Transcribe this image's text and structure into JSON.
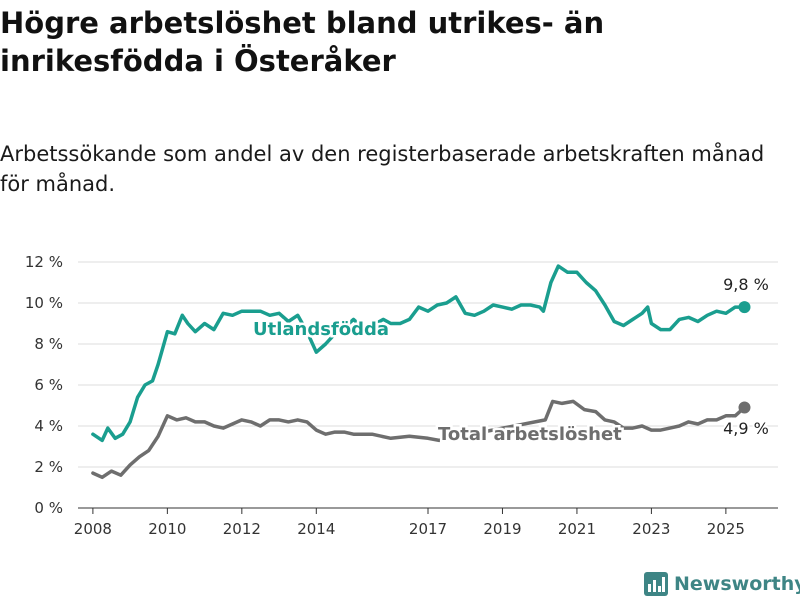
{
  "header": {
    "title": "Högre arbetslöshet bland utrikes- än inrikesfödda i Österåker",
    "subtitle": "Arbetssökande som andel av den registerbaserade arbetskraften månad för månad."
  },
  "branding": {
    "logo_text": "Newsworthy"
  },
  "chart_data": {
    "type": "line",
    "title": "Högre arbetslöshet bland utrikes- än inrikesfödda i Österåker",
    "subtitle": "Arbetssökande som andel av den registerbaserade arbetskraften månad för månad.",
    "xlabel": "",
    "ylabel": "",
    "xlim": [
      2007.6,
      2026.4
    ],
    "ylim": [
      0,
      12
    ],
    "x_ticks": [
      2008,
      2010,
      2012,
      2014,
      2017,
      2019,
      2021,
      2023,
      2025
    ],
    "y_ticks": [
      {
        "value": 0,
        "label": "0 %"
      },
      {
        "value": 2,
        "label": "2 %"
      },
      {
        "value": 4,
        "label": "4 %"
      },
      {
        "value": 6,
        "label": "6 %"
      },
      {
        "value": 8,
        "label": "8 %"
      },
      {
        "value": 10,
        "label": "10 %"
      },
      {
        "value": 12,
        "label": "12 %"
      }
    ],
    "grid": "horizontal",
    "series": [
      {
        "name": "Utlandsfödda",
        "color": "#1a9e8f",
        "end_label": "9,8 %",
        "points": [
          [
            2008.0,
            3.6
          ],
          [
            2008.25,
            3.3
          ],
          [
            2008.4,
            3.9
          ],
          [
            2008.6,
            3.4
          ],
          [
            2008.8,
            3.6
          ],
          [
            2009.0,
            4.2
          ],
          [
            2009.2,
            5.4
          ],
          [
            2009.4,
            6.0
          ],
          [
            2009.6,
            6.2
          ],
          [
            2009.75,
            7.0
          ],
          [
            2010.0,
            8.6
          ],
          [
            2010.2,
            8.5
          ],
          [
            2010.4,
            9.4
          ],
          [
            2010.55,
            9.0
          ],
          [
            2010.75,
            8.6
          ],
          [
            2011.0,
            9.0
          ],
          [
            2011.25,
            8.7
          ],
          [
            2011.5,
            9.5
          ],
          [
            2011.75,
            9.4
          ],
          [
            2012.0,
            9.6
          ],
          [
            2012.5,
            9.6
          ],
          [
            2012.75,
            9.4
          ],
          [
            2013.0,
            9.5
          ],
          [
            2013.25,
            9.1
          ],
          [
            2013.5,
            9.4
          ],
          [
            2013.75,
            8.6
          ],
          [
            2014.0,
            7.6
          ],
          [
            2014.25,
            8.0
          ],
          [
            2014.5,
            8.5
          ],
          [
            2014.75,
            8.8
          ],
          [
            2015.0,
            9.2
          ],
          [
            2015.3,
            8.7
          ],
          [
            2015.6,
            9.0
          ],
          [
            2015.8,
            9.2
          ],
          [
            2016.0,
            9.0
          ],
          [
            2016.25,
            9.0
          ],
          [
            2016.5,
            9.2
          ],
          [
            2016.75,
            9.8
          ],
          [
            2017.0,
            9.6
          ],
          [
            2017.25,
            9.9
          ],
          [
            2017.5,
            10.0
          ],
          [
            2017.75,
            10.3
          ],
          [
            2018.0,
            9.5
          ],
          [
            2018.25,
            9.4
          ],
          [
            2018.5,
            9.6
          ],
          [
            2018.75,
            9.9
          ],
          [
            2019.0,
            9.8
          ],
          [
            2019.25,
            9.7
          ],
          [
            2019.5,
            9.9
          ],
          [
            2019.75,
            9.9
          ],
          [
            2020.0,
            9.8
          ],
          [
            2020.1,
            9.6
          ],
          [
            2020.3,
            11.0
          ],
          [
            2020.5,
            11.8
          ],
          [
            2020.75,
            11.5
          ],
          [
            2021.0,
            11.5
          ],
          [
            2021.25,
            11.0
          ],
          [
            2021.5,
            10.6
          ],
          [
            2021.75,
            9.9
          ],
          [
            2022.0,
            9.1
          ],
          [
            2022.25,
            8.9
          ],
          [
            2022.5,
            9.2
          ],
          [
            2022.75,
            9.5
          ],
          [
            2022.9,
            9.8
          ],
          [
            2023.0,
            9.0
          ],
          [
            2023.25,
            8.7
          ],
          [
            2023.5,
            8.7
          ],
          [
            2023.75,
            9.2
          ],
          [
            2024.0,
            9.3
          ],
          [
            2024.25,
            9.1
          ],
          [
            2024.5,
            9.4
          ],
          [
            2024.75,
            9.6
          ],
          [
            2025.0,
            9.5
          ],
          [
            2025.25,
            9.8
          ],
          [
            2025.5,
            9.8
          ]
        ]
      },
      {
        "name": "Total arbetslöshet",
        "color": "#6e6e6e",
        "end_label": "4,9 %",
        "points": [
          [
            2008.0,
            1.7
          ],
          [
            2008.25,
            1.5
          ],
          [
            2008.5,
            1.8
          ],
          [
            2008.75,
            1.6
          ],
          [
            2009.0,
            2.1
          ],
          [
            2009.25,
            2.5
          ],
          [
            2009.5,
            2.8
          ],
          [
            2009.75,
            3.5
          ],
          [
            2010.0,
            4.5
          ],
          [
            2010.25,
            4.3
          ],
          [
            2010.5,
            4.4
          ],
          [
            2010.75,
            4.2
          ],
          [
            2011.0,
            4.2
          ],
          [
            2011.25,
            4.0
          ],
          [
            2011.5,
            3.9
          ],
          [
            2011.75,
            4.1
          ],
          [
            2012.0,
            4.3
          ],
          [
            2012.25,
            4.2
          ],
          [
            2012.5,
            4.0
          ],
          [
            2012.75,
            4.3
          ],
          [
            2013.0,
            4.3
          ],
          [
            2013.25,
            4.2
          ],
          [
            2013.5,
            4.3
          ],
          [
            2013.75,
            4.2
          ],
          [
            2014.0,
            3.8
          ],
          [
            2014.25,
            3.6
          ],
          [
            2014.5,
            3.7
          ],
          [
            2014.75,
            3.7
          ],
          [
            2015.0,
            3.6
          ],
          [
            2015.5,
            3.6
          ],
          [
            2016.0,
            3.4
          ],
          [
            2016.5,
            3.5
          ],
          [
            2017.0,
            3.4
          ],
          [
            2017.3,
            3.3
          ],
          [
            2020.15,
            4.3
          ],
          [
            2020.35,
            5.2
          ],
          [
            2020.6,
            5.1
          ],
          [
            2020.9,
            5.2
          ],
          [
            2021.2,
            4.8
          ],
          [
            2021.5,
            4.7
          ],
          [
            2021.75,
            4.3
          ],
          [
            2022.0,
            4.2
          ],
          [
            2022.25,
            3.9
          ],
          [
            2022.5,
            3.9
          ],
          [
            2022.75,
            4.0
          ],
          [
            2023.0,
            3.8
          ],
          [
            2023.25,
            3.8
          ],
          [
            2023.5,
            3.9
          ],
          [
            2023.75,
            4.0
          ],
          [
            2024.0,
            4.2
          ],
          [
            2024.25,
            4.1
          ],
          [
            2024.5,
            4.3
          ],
          [
            2024.75,
            4.3
          ],
          [
            2025.0,
            4.5
          ],
          [
            2025.25,
            4.5
          ],
          [
            2025.5,
            4.9
          ]
        ]
      }
    ]
  }
}
